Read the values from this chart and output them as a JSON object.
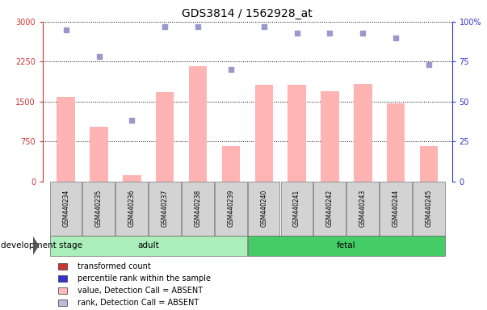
{
  "title": "GDS3814 / 1562928_at",
  "samples": [
    "GSM440234",
    "GSM440235",
    "GSM440236",
    "GSM440237",
    "GSM440238",
    "GSM440239",
    "GSM440240",
    "GSM440241",
    "GSM440242",
    "GSM440243",
    "GSM440244",
    "GSM440245"
  ],
  "bar_values": [
    1580,
    1030,
    120,
    1680,
    2160,
    660,
    1820,
    1820,
    1700,
    1830,
    1460,
    660
  ],
  "bar_color": "#ffb3b3",
  "scatter_rank_values": [
    95,
    78,
    38,
    97,
    97,
    70,
    97,
    93,
    93,
    93,
    90,
    73
  ],
  "scatter_color": "#9999cc",
  "ylim_left": [
    0,
    3000
  ],
  "ylim_right": [
    0,
    100
  ],
  "yticks_left": [
    0,
    750,
    1500,
    2250,
    3000
  ],
  "yticks_right": [
    0,
    25,
    50,
    75,
    100
  ],
  "adult_samples": 6,
  "fetal_samples": 6,
  "adult_label": "adult",
  "fetal_label": "fetal",
  "stage_label": "development stage",
  "adult_color": "#aaeebb",
  "fetal_color": "#44cc66",
  "legend_items": [
    {
      "label": "transformed count",
      "color": "#cc3333"
    },
    {
      "label": "percentile rank within the sample",
      "color": "#3333cc"
    },
    {
      "label": "value, Detection Call = ABSENT",
      "color": "#ffbbbb"
    },
    {
      "label": "rank, Detection Call = ABSENT",
      "color": "#bbbbdd"
    }
  ],
  "left_color": "#cc3333",
  "right_color": "#3333cc",
  "grid_color": "black",
  "background_color": "#ffffff",
  "title_fontsize": 10,
  "tick_fontsize": 7,
  "sample_fontsize": 5.5,
  "legend_fontsize": 7,
  "stage_fontsize": 7.5
}
